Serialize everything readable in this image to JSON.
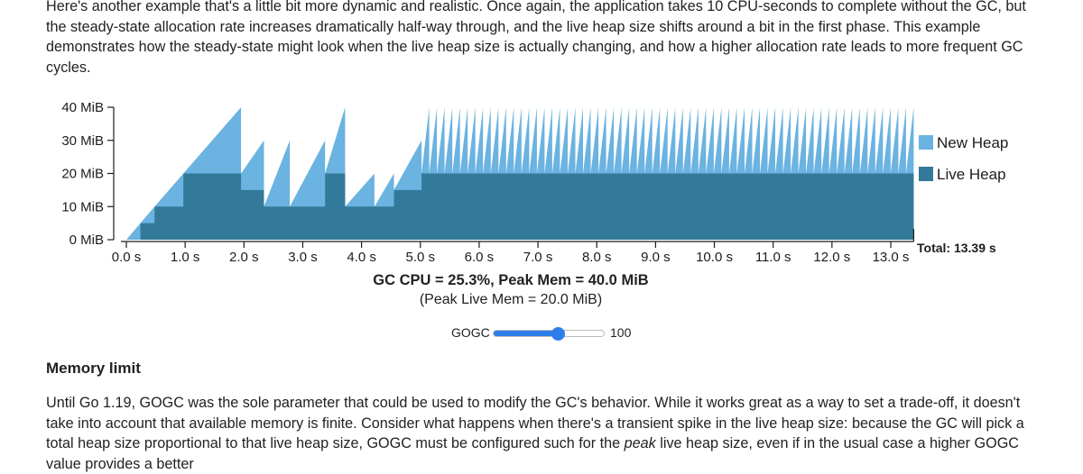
{
  "intro_text": "Here's another example that's a little bit more dynamic and realistic. Once again, the application takes 10 CPU-seconds to complete without the GC, but the steady-state allocation rate increases dramatically half-way through, and the live heap size shifts around a bit in the first phase. This example demonstrates how the steady-state might look when the live heap size is actually changing, and how a higher allocation rate leads to more frequent GC cycles.",
  "chart_data": {
    "type": "area",
    "title": "",
    "xlabel": "",
    "ylabel": "",
    "xlim": [
      0,
      13.39
    ],
    "ylim": [
      0,
      40
    ],
    "x_ticks": [
      0,
      1,
      2,
      3,
      4,
      5,
      6,
      7,
      8,
      9,
      10,
      11,
      12,
      13
    ],
    "x_tick_labels": [
      "0.0 s",
      "1.0 s",
      "2.0 s",
      "3.0 s",
      "4.0 s",
      "5.0 s",
      "6.0 s",
      "7.0 s",
      "8.0 s",
      "9.0 s",
      "10.0 s",
      "11.0 s",
      "12.0 s",
      "13.0 s"
    ],
    "y_ticks": [
      0,
      10,
      20,
      30,
      40
    ],
    "y_tick_labels": [
      "0 MiB",
      "10 MiB",
      "20 MiB",
      "30 MiB",
      "40 MiB"
    ],
    "grid": false,
    "legend_position": "right",
    "series": [
      {
        "name": "New Heap",
        "color": "#6bb3e0",
        "x": [
          0,
          0.24,
          0.24,
          0.48,
          0.48,
          0.97,
          0.97,
          1.95,
          1.95,
          2.34,
          2.34,
          2.78,
          2.78,
          3.38,
          3.38,
          3.72,
          3.72,
          4.22,
          4.22,
          4.55,
          4.55,
          5.02,
          5.02
        ],
        "values": [
          0,
          5,
          5,
          10,
          10,
          20,
          20,
          40,
          20,
          30,
          10,
          30,
          10,
          30,
          20,
          40,
          10,
          20,
          10,
          20,
          15,
          30,
          20
        ]
      },
      {
        "name": "Live Heap",
        "color": "#337999",
        "x": [
          0,
          0.24,
          0.24,
          0.48,
          0.48,
          0.97,
          0.97,
          1.95,
          1.95,
          2.34,
          2.34,
          2.78,
          2.78,
          3.38,
          3.38,
          3.72,
          3.72,
          4.22,
          4.22,
          4.55,
          4.55,
          5.02,
          5.02,
          13.39
        ],
        "values": [
          0,
          0,
          5,
          5,
          10,
          10,
          20,
          20,
          15,
          15,
          10,
          10,
          10,
          10,
          20,
          20,
          10,
          10,
          10,
          10,
          15,
          15,
          20,
          20
        ]
      }
    ],
    "steady_state_new_heap": {
      "x_start": 5.02,
      "x_end": 13.39,
      "cycles": 64,
      "peak": 40,
      "base": 20
    },
    "total_label": "Total: 13.39 s"
  },
  "stats": {
    "summary": "GC CPU = 25.3%, Peak Mem = 40.0 MiB",
    "peak_live": "(Peak Live Mem = 20.0 MiB)"
  },
  "gogc": {
    "label": "GOGC",
    "value": 100,
    "value_text": "100",
    "slider_fraction": 0.6
  },
  "memory_limit_heading": "Memory limit",
  "outro": {
    "before": "Until Go 1.19, GOGC was the sole parameter that could be used to modify the GC's behavior. While it works great as a way to set a trade-off, it doesn't take into account that available memory is finite. Consider what happens when there's a transient spike in the live heap size: because the GC will pick a total heap size proportional to that live heap size, GOGC must be configured such for the ",
    "emphasis": "peak",
    "after": " live heap size, even if in the usual case a higher GOGC value provides a better"
  }
}
